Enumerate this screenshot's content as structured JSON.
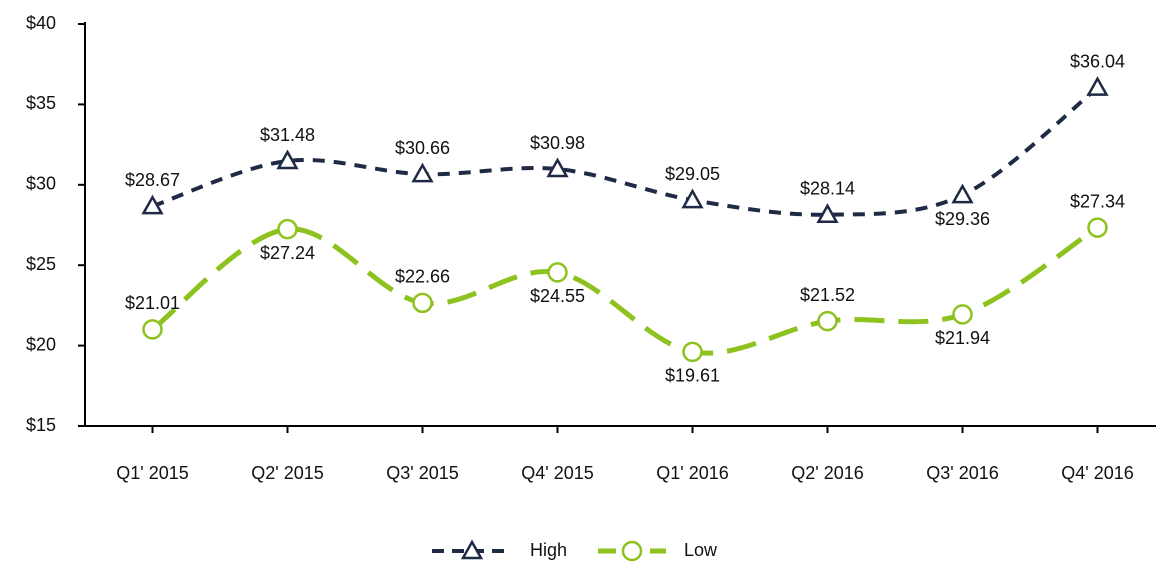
{
  "chart_data": {
    "type": "line",
    "categories": [
      "Q1' 2015",
      "Q2' 2015",
      "Q3' 2015",
      "Q4' 2015",
      "Q1' 2016",
      "Q2' 2016",
      "Q3' 2016",
      "Q4' 2016"
    ],
    "series": [
      {
        "name": "High",
        "color": "#1f2a44",
        "marker": "triangle",
        "values": [
          28.67,
          31.48,
          30.66,
          30.98,
          29.05,
          28.14,
          29.36,
          36.04
        ],
        "value_labels": [
          "$28.67",
          "$31.48",
          "$30.66",
          "$30.98",
          "$29.05",
          "$28.14",
          "$29.36",
          "$36.04"
        ]
      },
      {
        "name": "Low",
        "color": "#8dc21f",
        "marker": "circle",
        "values": [
          21.01,
          27.24,
          22.66,
          24.55,
          19.61,
          21.52,
          21.94,
          27.34
        ],
        "value_labels": [
          "$21.01",
          "$27.24",
          "$22.66",
          "$24.55",
          "$19.61",
          "$21.52",
          "$21.94",
          "$27.34"
        ]
      }
    ],
    "ylim": [
      15,
      40
    ],
    "yticks": [
      {
        "value": 15,
        "label": "$15"
      },
      {
        "value": 20,
        "label": "$20"
      },
      {
        "value": 25,
        "label": "$25"
      },
      {
        "value": 30,
        "label": "$30"
      },
      {
        "value": 35,
        "label": "$35"
      },
      {
        "value": 40,
        "label": "$40"
      }
    ],
    "legend": "bottom"
  }
}
